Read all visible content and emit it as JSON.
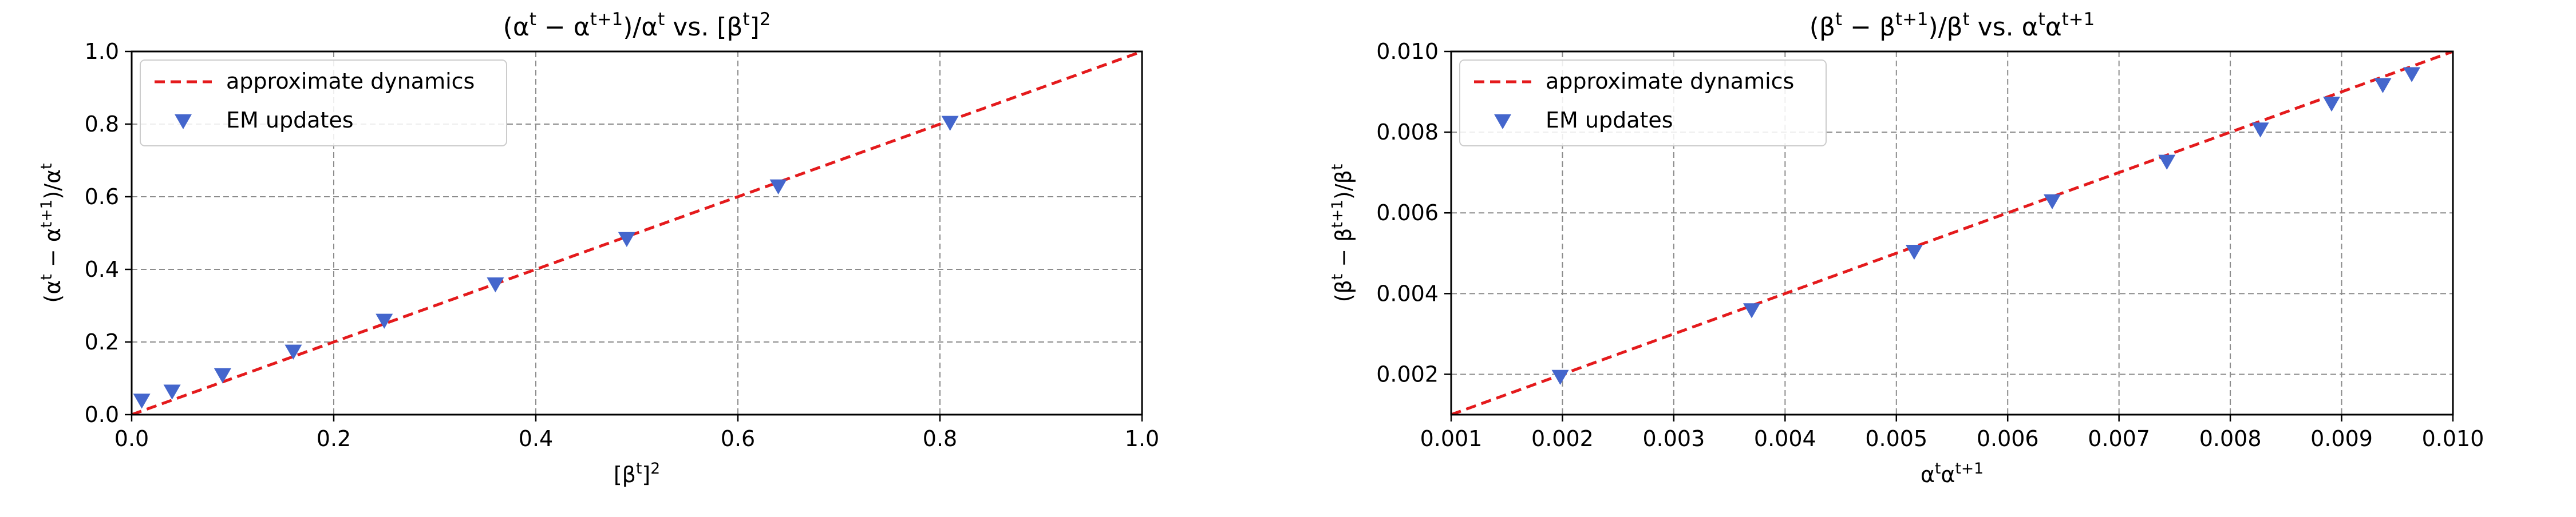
{
  "chart_data": [
    {
      "type": "scatter",
      "title_parts": [
        {
          "t": "(α"
        },
        {
          "t": "t",
          "sup": true
        },
        {
          "t": " − α"
        },
        {
          "t": "t+1",
          "sup": true
        },
        {
          "t": ")/α"
        },
        {
          "t": "t",
          "sup": true
        },
        {
          "t": " vs. [β"
        },
        {
          "t": "t",
          "sup": true
        },
        {
          "t": "]"
        },
        {
          "t": "2",
          "sup": true
        }
      ],
      "xlabel_parts": [
        {
          "t": "[β"
        },
        {
          "t": "t",
          "sup": true
        },
        {
          "t": "]"
        },
        {
          "t": "2",
          "sup": true
        }
      ],
      "ylabel_parts": [
        {
          "t": "(α"
        },
        {
          "t": "t",
          "sup": true
        },
        {
          "t": " − α"
        },
        {
          "t": "t+1",
          "sup": true
        },
        {
          "t": ")/α"
        },
        {
          "t": "t",
          "sup": true
        }
      ],
      "xlim": [
        0,
        1.0
      ],
      "ylim": [
        0,
        1.0
      ],
      "xticks": [
        0.0,
        0.2,
        0.4,
        0.6,
        0.8,
        1.0
      ],
      "yticks": [
        0.0,
        0.2,
        0.4,
        0.6,
        0.8,
        1.0
      ],
      "xtick_labels": [
        "0.0",
        "0.2",
        "0.4",
        "0.6",
        "0.8",
        "1.0"
      ],
      "ytick_labels": [
        "0.0",
        "0.2",
        "0.4",
        "0.6",
        "0.8",
        "1.0"
      ],
      "grid": true,
      "legend_position": "top-left",
      "series": [
        {
          "name": "approximate dynamics",
          "kind": "line",
          "style": "dashed",
          "color": "#e41a1c",
          "x": [
            0.0,
            1.0
          ],
          "y": [
            0.0,
            1.0
          ]
        },
        {
          "name": "EM updates",
          "kind": "marker",
          "marker": "triangle-down",
          "color": "#4466cc",
          "x": [
            0.01,
            0.04,
            0.09,
            0.16,
            0.25,
            0.36,
            0.49,
            0.64,
            0.81
          ],
          "y": [
            0.04,
            0.065,
            0.11,
            0.175,
            0.26,
            0.36,
            0.485,
            0.63,
            0.805
          ]
        }
      ]
    },
    {
      "type": "scatter",
      "title_parts": [
        {
          "t": "(β"
        },
        {
          "t": "t",
          "sup": true
        },
        {
          "t": " − β"
        },
        {
          "t": "t+1",
          "sup": true
        },
        {
          "t": ")/β"
        },
        {
          "t": "t",
          "sup": true
        },
        {
          "t": " vs. α"
        },
        {
          "t": "t",
          "sup": true
        },
        {
          "t": "α"
        },
        {
          "t": "t+1",
          "sup": true
        }
      ],
      "xlabel_parts": [
        {
          "t": "α"
        },
        {
          "t": "t",
          "sup": true
        },
        {
          "t": "α"
        },
        {
          "t": "t+1",
          "sup": true
        }
      ],
      "ylabel_parts": [
        {
          "t": "(β"
        },
        {
          "t": "t",
          "sup": true
        },
        {
          "t": " − β"
        },
        {
          "t": "t+1",
          "sup": true
        },
        {
          "t": ")/β"
        },
        {
          "t": "t",
          "sup": true
        }
      ],
      "xlim": [
        0.001,
        0.01
      ],
      "ylim": [
        0.001,
        0.01
      ],
      "xticks": [
        0.001,
        0.002,
        0.003,
        0.004,
        0.005,
        0.006,
        0.007,
        0.008,
        0.009,
        0.01
      ],
      "yticks": [
        0.002,
        0.004,
        0.006,
        0.008,
        0.01
      ],
      "xtick_labels": [
        "0.001",
        "0.002",
        "0.003",
        "0.004",
        "0.005",
        "0.006",
        "0.007",
        "0.008",
        "0.009",
        "0.010"
      ],
      "ytick_labels": [
        "0.002",
        "0.004",
        "0.006",
        "0.008",
        "0.010"
      ],
      "grid": true,
      "legend_position": "top-left",
      "series": [
        {
          "name": "approximate dynamics",
          "kind": "line",
          "style": "dashed",
          "color": "#e41a1c",
          "x": [
            0.001,
            0.01
          ],
          "y": [
            0.001,
            0.01
          ]
        },
        {
          "name": "EM updates",
          "kind": "marker",
          "marker": "triangle-down",
          "color": "#4466cc",
          "x": [
            0.00198,
            0.0037,
            0.00516,
            0.0064,
            0.00743,
            0.00827,
            0.00891,
            0.00937,
            0.00963
          ],
          "y": [
            0.00195,
            0.0036,
            0.00505,
            0.0063,
            0.00728,
            0.00808,
            0.00872,
            0.00918,
            0.00945
          ]
        }
      ]
    }
  ]
}
